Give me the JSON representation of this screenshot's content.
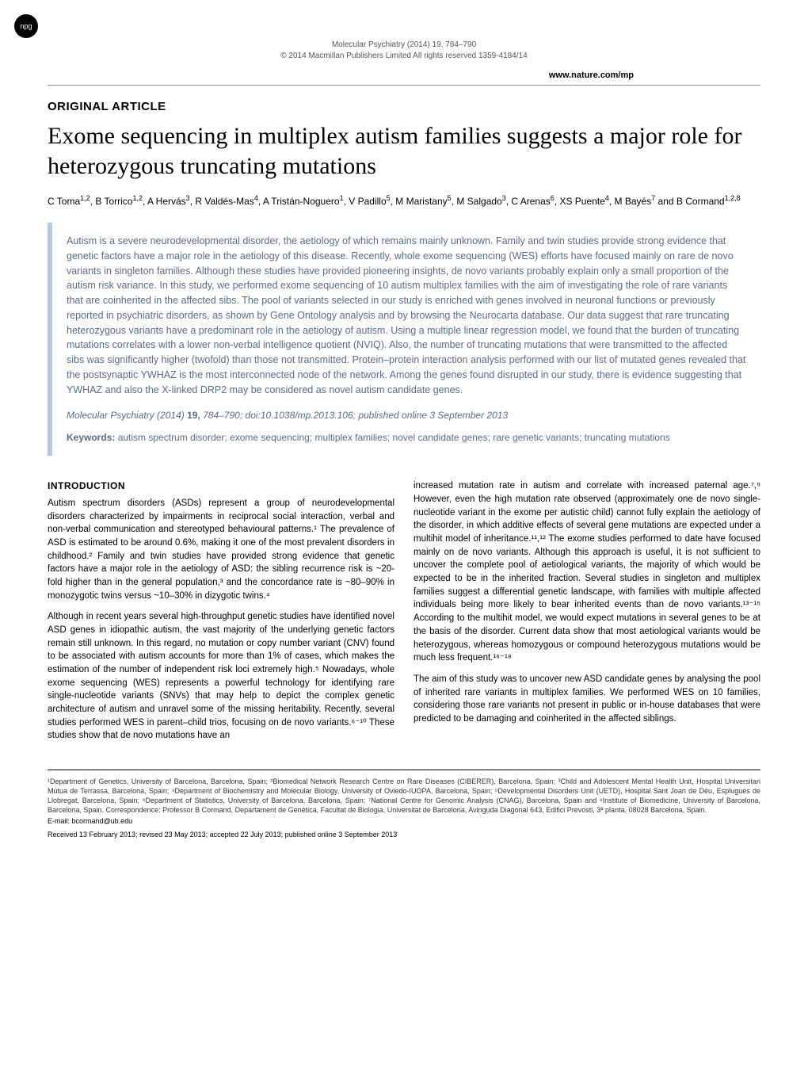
{
  "badge": "npg",
  "header": {
    "journal_line": "Molecular Psychiatry (2014) 19, 784–790",
    "copyright_line": "© 2014 Macmillan Publishers Limited   All rights reserved 1359-4184/14",
    "url": "www.nature.com/mp"
  },
  "article_type": "ORIGINAL ARTICLE",
  "title": "Exome sequencing in multiplex autism families suggests a major role for heterozygous truncating mutations",
  "authors_html": "C Toma<sup>1,2</sup>, B Torrico<sup>1,2</sup>, A Hervás<sup>3</sup>, R Valdés-Mas<sup>4</sup>, A Tristán-Noguero<sup>1</sup>, V Padillo<sup>5</sup>, M Maristany<sup>5</sup>, M Salgado<sup>3</sup>, C Arenas<sup>6</sup>, XS Puente<sup>4</sup>, M Bayés<sup>7</sup> and B Cormand<sup>1,2,8</sup>",
  "abstract": "Autism is a severe neurodevelopmental disorder, the aetiology of which remains mainly unknown. Family and twin studies provide strong evidence that genetic factors have a major role in the aetiology of this disease. Recently, whole exome sequencing (WES) efforts have focused mainly on rare de novo variants in singleton families. Although these studies have provided pioneering insights, de novo variants probably explain only a small proportion of the autism risk variance. In this study, we performed exome sequencing of 10 autism multiplex families with the aim of investigating the role of rare variants that are coinherited in the affected sibs. The pool of variants selected in our study is enriched with genes involved in neuronal functions or previously reported in psychiatric disorders, as shown by Gene Ontology analysis and by browsing the Neurocarta database. Our data suggest that rare truncating heterozygous variants have a predominant role in the aetiology of autism. Using a multiple linear regression model, we found that the burden of truncating mutations correlates with a lower non-verbal intelligence quotient (NVIQ). Also, the number of truncating mutations that were transmitted to the affected sibs was significantly higher (twofold) than those not transmitted. Protein–protein interaction analysis performed with our list of mutated genes revealed that the postsynaptic YWHAZ is the most interconnected node of the network. Among the genes found disrupted in our study, there is evidence suggesting that YWHAZ and also the X-linked DRP2 may be considered as novel autism candidate genes.",
  "citation": {
    "journal": "Molecular Psychiatry",
    "year": "(2014)",
    "volume": "19,",
    "pages": "784–790;",
    "doi": "doi:10.1038/mp.2013.106;",
    "published": "published online 3 September 2013"
  },
  "keywords_label": "Keywords:",
  "keywords": "autism spectrum disorder; exome sequencing; multiplex families; novel candidate genes; rare genetic variants; truncating mutations",
  "intro_head": "INTRODUCTION",
  "intro_p1": "Autism spectrum disorders (ASDs) represent a group of neurodevelopmental disorders characterized by impairments in reciprocal social interaction, verbal and non-verbal communication and stereotyped behavioural patterns.¹ The prevalence of ASD is estimated to be around 0.6%, making it one of the most prevalent disorders in childhood.² Family and twin studies have provided strong evidence that genetic factors have a major role in the aetiology of ASD: the sibling recurrence risk is ~20-fold higher than in the general population,³ and the concordance rate is ~80–90% in monozygotic twins versus ~10–30% in dizygotic twins.⁴",
  "intro_p2": "Although in recent years several high-throughput genetic studies have identified novel ASD genes in idiopathic autism, the vast majority of the underlying genetic factors remain still unknown. In this regard, no mutation or copy number variant (CNV) found to be associated with autism accounts for more than 1% of cases, which makes the estimation of the number of independent risk loci extremely high.⁵ Nowadays, whole exome sequencing (WES) represents a powerful technology for identifying rare single-nucleotide variants (SNVs) that may help to depict the complex genetic architecture of autism and unravel some of the missing heritability. Recently, several studies performed WES in parent–child trios, focusing on de novo variants.⁶⁻¹⁰ These studies show that de novo mutations have an",
  "col2_p1": "increased mutation rate in autism and correlate with increased paternal age.⁷,⁹ However, even the high mutation rate observed (approximately one de novo single-nucleotide variant in the exome per autistic child) cannot fully explain the aetiology of the disorder, in which additive effects of several gene mutations are expected under a multihit model of inheritance.¹¹,¹² The exome studies performed to date have focused mainly on de novo variants. Although this approach is useful, it is not sufficient to uncover the complete pool of aetiological variants, the majority of which would be expected to be in the inherited fraction. Several studies in singleton and multiplex families suggest a differential genetic landscape, with families with multiple affected individuals being more likely to bear inherited events than de novo variants.¹³⁻¹⁵ According to the multihit model, we would expect mutations in several genes to be at the basis of the disorder. Current data show that most aetiological variants would be heterozygous, whereas homozygous or compound heterozygous mutations would be much less frequent.¹⁶⁻¹⁸",
  "col2_p2": "The aim of this study was to uncover new ASD candidate genes by analysing the pool of inherited rare variants in multiplex families. We performed WES on 10 families, considering those rare variants not present in public or in-house databases that were predicted to be damaging and coinherited in the affected siblings.",
  "affiliations": "¹Department of Genetics, University of Barcelona, Barcelona, Spain; ²Biomedical Network Research Centre on Rare Diseases (CIBERER), Barcelona, Spain; ³Child and Adolescent Mental Health Unit, Hospital Universitari Mútua de Terrassa, Barcelona, Spain; ⁴Department of Biochemistry and Molecular Biology, University of Oviedo-IUOPA, Barcelona, Spain; ⁵Developmental Disorders Unit (UETD), Hospital Sant Joan de Déu, Esplugues de Llobregat, Barcelona, Spain; ⁶Department of Statistics, University of Barcelona, Barcelona, Spain; ⁷National Centre for Genomic Analysis (CNAG), Barcelona, Spain and ⁸Institute of Biomedicine, University of Barcelona, Barcelona, Spain. Correspondence: Professor B Cormand, Departament de Genètica, Facultat de Biologia, Universitat de Barcelona, Avinguda Diagonal 643, Edifici Prevosti, 3ª planta, 08028 Barcelona, Spain.",
  "email": "E-mail: bcormand@ub.edu",
  "dates": "Received 13 February 2013; revised 23 May 2013; accepted 22 July 2013; published online 3 September 2013"
}
